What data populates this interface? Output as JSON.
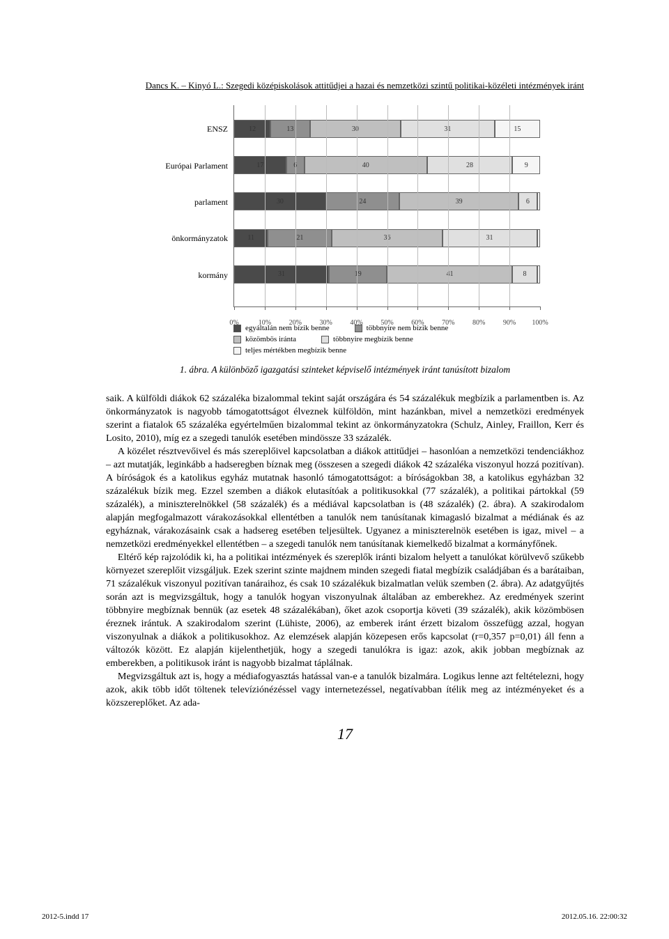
{
  "header": "Dancs K. – Kinyó L.: Szegedi középiskolások attitűdjei a hazai és nemzetközi szintű politikai-közéleti intézmények iránt",
  "chart": {
    "type": "stacked_bar_horizontal",
    "categories": [
      "ENSZ",
      "Európai Parlament",
      "parlament",
      "önkormányzatok",
      "kormány"
    ],
    "series_labels": [
      "egyáltalán nem bízik benne",
      "többnyire nem bízik benne",
      "közömbös iránta",
      "többnyire megbízik benne",
      "teljes mértékben megbízik benne"
    ],
    "series_colors": [
      "#4a4a4a",
      "#8f8f8f",
      "#bfbfbf",
      "#e0e0e0",
      "#f5f5f5"
    ],
    "data": [
      [
        12,
        13,
        30,
        31,
        15
      ],
      [
        17,
        6,
        40,
        28,
        9
      ],
      [
        30,
        24,
        39,
        6,
        1
      ],
      [
        11,
        21,
        36,
        31,
        1
      ],
      [
        31,
        19,
        41,
        8,
        1
      ]
    ],
    "show_labels_min": 5,
    "x_ticks": [
      "0%",
      "10%",
      "20%",
      "30%",
      "40%",
      "50%",
      "60%",
      "70%",
      "80%",
      "90%",
      "100%"
    ],
    "xlim": [
      0,
      100
    ],
    "grid_color": "#bbbbbb",
    "border_color": "#666666",
    "label_fontsize": 12,
    "value_fontsize": 10,
    "background_color": "#ffffff"
  },
  "caption": "1. ábra. A különböző igazgatási szinteket képviselő intézmények iránt tanúsított bizalom",
  "para1": "saik. A külföldi diákok 62 százaléka bizalommal tekint saját országára és 54 százalékuk megbízik a parlamentben is. Az önkormányzatok is nagyobb támogatottságot élveznek külföldön, mint hazánkban, mivel a nemzetközi eredmények szerint a fiatalok 65 százaléka egyértelműen bizalommal tekint az önkormányzatokra (Schulz, Ainley, Fraillon, Kerr és Losito, 2010), míg ez a szegedi tanulók esetében mindössze 33 százalék.",
  "para2": "A közélet résztvevőivel és más szereplőivel kapcsolatban a diákok attitűdjei – hasonlóan a nemzetközi tendenciákhoz – azt mutatják, leginkább a hadseregben bíznak meg (összesen a szegedi diákok 42 százaléka viszonyul hozzá pozitívan). A bíróságok és a katolikus egyház mutatnak hasonló támogatottságot: a bíróságokban 38, a katolikus egyházban 32 százalékuk bízik meg. Ezzel szemben a diákok elutasítóak a politikusokkal (77 százalék), a politikai pártokkal (59 százalék), a miniszterelnökkel (58 százalék) és a médiával kapcsolatban is (48 százalék) (2. ábra). A szakirodalom alapján megfogalmazott várakozásokkal ellentétben a tanulók nem tanúsítanak kimagasló bizalmat a médiának és az egyháznak, várakozásaink csak a hadsereg esetében teljesültek. Ugyanez a miniszterelnök esetében is igaz, mivel – a nemzetközi eredményekkel ellentétben – a szegedi tanulók nem tanúsítanak kiemelkedő bizalmat a kormányfőnek.",
  "para3": "Eltérő kép rajzolódik ki, ha a politikai intézmények és szereplők iránti bizalom helyett a tanulókat körülvevő szűkebb környezet szereplőit vizsgáljuk. Ezek szerint szinte majdnem minden szegedi fiatal megbízik családjában és a barátaiban, 71 százalékuk viszonyul pozitívan tanáraihoz, és csak 10 százalékuk bizalmatlan velük szemben (2. ábra). Az adatgyűjtés során azt is megvizsgáltuk, hogy a tanulók hogyan viszonyulnak általában az emberekhez. Az eredmények szerint többnyire megbíznak bennük (az esetek 48 százalékában), őket azok csoportja követi (39 százalék), akik közömbösen éreznek irántuk. A szakirodalom szerint (Lühiste, 2006), az emberek iránt érzett bizalom összefügg azzal, hogyan viszonyulnak a diákok a politikusokhoz. Az elemzések alapján közepesen erős kapcsolat (r=0,357 p=0,01) áll fenn a változók között. Ez alapján kijelenthetjük, hogy a szegedi tanulókra is igaz: azok, akik jobban megbíznak az emberekben, a politikusok iránt is nagyobb bizalmat táplálnak.",
  "para4": "Megvizsgáltuk azt is, hogy a médiafogyasztás hatással van-e a tanulók bizalmára. Logikus lenne azt feltételezni, hogy azok, akik több időt töltenek televíziónézéssel vagy internetezéssel, negatívabban ítélik meg az intézményeket és a közszereplőket. Az ada-",
  "page_number": "17",
  "footer_left": "2012-5.indd   17",
  "footer_right": "2012.05.16.   22:00:32"
}
